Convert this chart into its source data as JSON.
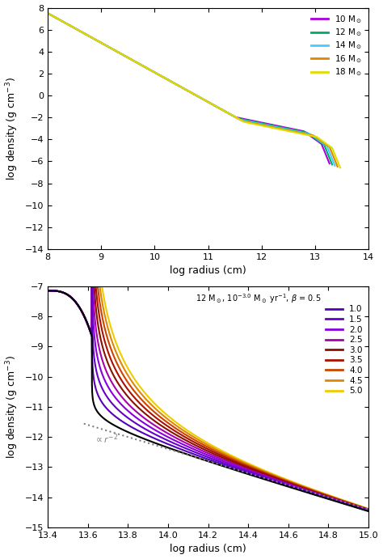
{
  "panel1": {
    "xlabel": "log radius (cm)",
    "ylabel": "log density (g cm$^{-3}$)",
    "xlim": [
      8,
      14
    ],
    "ylim": [
      -14,
      8
    ],
    "xticks": [
      8,
      9,
      10,
      11,
      12,
      13,
      14
    ],
    "yticks": [
      -14,
      -12,
      -10,
      -8,
      -6,
      -4,
      -2,
      0,
      2,
      4,
      6,
      8
    ],
    "masses": [
      10,
      12,
      14,
      16,
      18
    ],
    "colors": [
      "#aa00dd",
      "#00aa66",
      "#44ccff",
      "#dd8800",
      "#dddd00"
    ],
    "lw": 1.5
  },
  "panel2": {
    "xlabel": "log radius (cm)",
    "ylabel": "log density (g cm$^{-3}$)",
    "xlim": [
      13.4,
      15.0
    ],
    "ylim": [
      -15,
      -7
    ],
    "xticks": [
      13.4,
      13.6,
      13.8,
      14.0,
      14.2,
      14.4,
      14.6,
      14.8,
      15.0
    ],
    "yticks": [
      -15,
      -14,
      -13,
      -12,
      -11,
      -10,
      -9,
      -8,
      -7
    ],
    "betas": [
      0.5,
      1.0,
      1.5,
      2.0,
      2.5,
      3.0,
      3.5,
      4.0,
      4.5,
      5.0
    ],
    "beta_colors": [
      "#000000",
      "#5500bb",
      "#6600cc",
      "#8800dd",
      "#aa00aa",
      "#881100",
      "#aa1100",
      "#cc4400",
      "#dd8800",
      "#eecc00"
    ],
    "r2_label": "$\\propto r^{-2}$",
    "legend_title": "12 M$_\\odot$, 10$^{-3.0}$ M$_\\odot$ yr$^{-1}$, $\\beta$ = 0.5",
    "lw": 1.5
  }
}
